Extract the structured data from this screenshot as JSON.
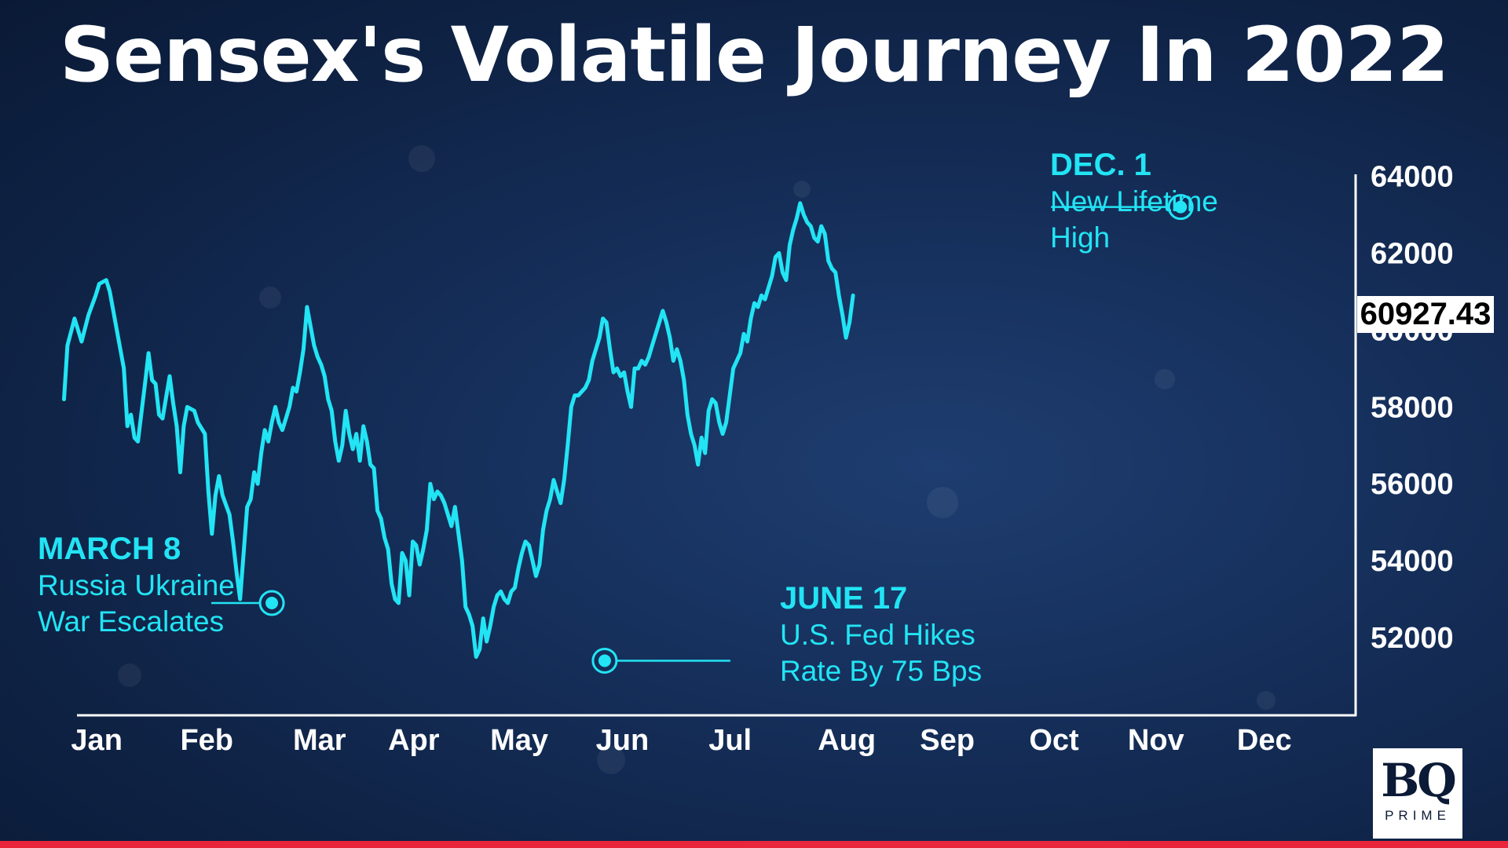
{
  "title": "Sensex's Volatile Journey In 2022",
  "current_value_label": "60927.43",
  "logo": {
    "mark": "BQ",
    "sub": "PRIME"
  },
  "colors": {
    "line": "#22e4f4",
    "background": "#13294e",
    "accent_bar": "#e8253b",
    "axis": "#ffffff"
  },
  "annotations": [
    {
      "id": "march",
      "head": "MARCH 8",
      "lines": [
        "Russia Ukraine",
        "War Escalates"
      ],
      "x": 62.0,
      "y": 52900
    },
    {
      "id": "june",
      "head": "JUNE 17",
      "lines": [
        "U.S. Fed Hikes",
        "Rate By 75 Bps"
      ],
      "x": 156.5,
      "y": 51400
    },
    {
      "id": "dec",
      "head": "DEC. 1",
      "lines": [
        "New Lifetime",
        "High"
      ],
      "x": 320.0,
      "y": 63200
    }
  ],
  "chart_data": {
    "type": "line",
    "title": "Sensex's Volatile Journey In 2022",
    "xlabel": "",
    "ylabel": "",
    "x_unit": "day of year 2022",
    "xlim": [
      0,
      365
    ],
    "ylim": [
      50000,
      64500
    ],
    "x_ticks": [
      {
        "label": "Jan",
        "x": 5
      },
      {
        "label": "Feb",
        "x": 36
      },
      {
        "label": "Mar",
        "x": 68
      },
      {
        "label": "Apr",
        "x": 95
      },
      {
        "label": "May",
        "x": 124
      },
      {
        "label": "Jun",
        "x": 154
      },
      {
        "label": "Jul",
        "x": 186
      },
      {
        "label": "Aug",
        "x": 217
      },
      {
        "label": "Sep",
        "x": 246
      },
      {
        "label": "Oct",
        "x": 277
      },
      {
        "label": "Nov",
        "x": 305
      },
      {
        "label": "Dec",
        "x": 336
      }
    ],
    "y_ticks": [
      52000,
      54000,
      56000,
      58000,
      60000,
      62000,
      64000
    ],
    "grid": false,
    "series": [
      {
        "values": [
          [
            3,
            58200
          ],
          [
            4,
            59600
          ],
          [
            6,
            60300
          ],
          [
            8,
            59700
          ],
          [
            10,
            60400
          ],
          [
            12,
            60900
          ],
          [
            13,
            61200
          ],
          [
            15,
            61300
          ],
          [
            16,
            61000
          ],
          [
            18,
            60000
          ],
          [
            20,
            59000
          ],
          [
            21,
            57500
          ],
          [
            22,
            57800
          ],
          [
            23,
            57200
          ],
          [
            24,
            57100
          ],
          [
            26,
            58600
          ],
          [
            27,
            59400
          ],
          [
            28,
            58700
          ],
          [
            29,
            58600
          ],
          [
            30,
            57800
          ],
          [
            31,
            57700
          ],
          [
            33,
            58800
          ],
          [
            34,
            58100
          ],
          [
            35,
            57500
          ],
          [
            36,
            56300
          ],
          [
            37,
            57500
          ],
          [
            38,
            58000
          ],
          [
            40,
            57900
          ],
          [
            41,
            57600
          ],
          [
            43,
            57300
          ],
          [
            44,
            55800
          ],
          [
            45,
            54700
          ],
          [
            46,
            55700
          ],
          [
            47,
            56200
          ],
          [
            48,
            55700
          ],
          [
            50,
            55200
          ],
          [
            51,
            54500
          ],
          [
            52,
            53700
          ],
          [
            53,
            53000
          ],
          [
            55,
            55400
          ],
          [
            56,
            55600
          ],
          [
            57,
            56300
          ],
          [
            58,
            56000
          ],
          [
            59,
            56800
          ],
          [
            60,
            57400
          ],
          [
            61,
            57100
          ],
          [
            62,
            57600
          ],
          [
            63,
            58000
          ],
          [
            64,
            57600
          ],
          [
            65,
            57400
          ],
          [
            66,
            57700
          ],
          [
            67,
            58000
          ],
          [
            68,
            58500
          ],
          [
            69,
            58400
          ],
          [
            70,
            58900
          ],
          [
            71,
            59500
          ],
          [
            72,
            60600
          ],
          [
            73,
            60100
          ],
          [
            74,
            59600
          ],
          [
            75,
            59300
          ],
          [
            76,
            59100
          ],
          [
            77,
            58800
          ],
          [
            78,
            58200
          ],
          [
            79,
            57900
          ],
          [
            80,
            57100
          ],
          [
            81,
            56600
          ],
          [
            82,
            57000
          ],
          [
            83,
            57900
          ],
          [
            84,
            57300
          ],
          [
            85,
            56900
          ],
          [
            86,
            57300
          ],
          [
            87,
            56600
          ],
          [
            88,
            57500
          ],
          [
            89,
            57100
          ],
          [
            90,
            56500
          ],
          [
            91,
            56400
          ],
          [
            92,
            55300
          ],
          [
            93,
            55100
          ],
          [
            94,
            54600
          ],
          [
            95,
            54300
          ],
          [
            96,
            53400
          ],
          [
            97,
            53000
          ],
          [
            98,
            52900
          ],
          [
            99,
            54200
          ],
          [
            100,
            54000
          ],
          [
            101,
            53100
          ],
          [
            102,
            54500
          ],
          [
            103,
            54400
          ],
          [
            104,
            53900
          ],
          [
            105,
            54300
          ],
          [
            106,
            54800
          ],
          [
            107,
            56000
          ],
          [
            108,
            55600
          ],
          [
            109,
            55800
          ],
          [
            110,
            55700
          ],
          [
            111,
            55500
          ],
          [
            112,
            55200
          ],
          [
            113,
            54900
          ],
          [
            114,
            55400
          ],
          [
            115,
            54700
          ],
          [
            116,
            54000
          ],
          [
            117,
            52800
          ],
          [
            118,
            52600
          ],
          [
            119,
            52300
          ],
          [
            120,
            51500
          ],
          [
            121,
            51700
          ],
          [
            122,
            52500
          ],
          [
            123,
            51900
          ],
          [
            124,
            52300
          ],
          [
            125,
            52800
          ],
          [
            126,
            53100
          ],
          [
            127,
            53200
          ],
          [
            128,
            53000
          ],
          [
            129,
            52900
          ],
          [
            130,
            53200
          ],
          [
            131,
            53300
          ],
          [
            132,
            53800
          ],
          [
            133,
            54200
          ],
          [
            134,
            54500
          ],
          [
            135,
            54400
          ],
          [
            136,
            54000
          ],
          [
            137,
            53600
          ],
          [
            138,
            53900
          ],
          [
            139,
            54800
          ],
          [
            140,
            55300
          ],
          [
            141,
            55600
          ],
          [
            142,
            56100
          ],
          [
            143,
            55800
          ],
          [
            144,
            55500
          ],
          [
            145,
            56100
          ],
          [
            146,
            57000
          ],
          [
            147,
            58000
          ],
          [
            148,
            58300
          ],
          [
            149,
            58300
          ],
          [
            150,
            58400
          ],
          [
            151,
            58500
          ],
          [
            152,
            58700
          ],
          [
            153,
            59200
          ],
          [
            154,
            59500
          ],
          [
            155,
            59800
          ],
          [
            156,
            60300
          ],
          [
            157,
            60200
          ],
          [
            158,
            59500
          ],
          [
            159,
            58900
          ],
          [
            160,
            59000
          ],
          [
            161,
            58800
          ],
          [
            162,
            58900
          ],
          [
            163,
            58400
          ],
          [
            164,
            58000
          ],
          [
            165,
            59000
          ],
          [
            166,
            59000
          ],
          [
            167,
            59200
          ],
          [
            168,
            59100
          ],
          [
            169,
            59300
          ],
          [
            170,
            59600
          ],
          [
            171,
            59900
          ],
          [
            172,
            60200
          ],
          [
            173,
            60500
          ],
          [
            174,
            60200
          ],
          [
            175,
            59800
          ],
          [
            176,
            59200
          ],
          [
            177,
            59500
          ],
          [
            178,
            59200
          ],
          [
            179,
            58700
          ],
          [
            180,
            57800
          ],
          [
            181,
            57300
          ],
          [
            182,
            57000
          ],
          [
            183,
            56500
          ],
          [
            184,
            57200
          ],
          [
            185,
            56800
          ],
          [
            186,
            57900
          ],
          [
            187,
            58200
          ],
          [
            188,
            58100
          ],
          [
            189,
            57600
          ],
          [
            190,
            57300
          ],
          [
            191,
            57600
          ],
          [
            192,
            58300
          ],
          [
            193,
            59000
          ],
          [
            194,
            59200
          ],
          [
            195,
            59400
          ],
          [
            196,
            59900
          ],
          [
            197,
            59700
          ],
          [
            198,
            60300
          ],
          [
            199,
            60700
          ],
          [
            200,
            60600
          ],
          [
            201,
            60900
          ],
          [
            202,
            60800
          ],
          [
            203,
            61100
          ],
          [
            204,
            61400
          ],
          [
            205,
            61900
          ],
          [
            206,
            62000
          ],
          [
            207,
            61500
          ],
          [
            208,
            61300
          ],
          [
            209,
            62200
          ],
          [
            210,
            62600
          ],
          [
            211,
            62900
          ],
          [
            212,
            63300
          ],
          [
            213,
            63000
          ],
          [
            214,
            62800
          ],
          [
            215,
            62700
          ],
          [
            216,
            62400
          ],
          [
            217,
            62300
          ],
          [
            218,
            62700
          ],
          [
            219,
            62500
          ],
          [
            220,
            61800
          ],
          [
            221,
            61600
          ],
          [
            222,
            61500
          ],
          [
            223,
            60900
          ],
          [
            224,
            60400
          ],
          [
            225,
            59800
          ],
          [
            226,
            60200
          ],
          [
            227,
            60900
          ]
        ]
      }
    ]
  }
}
